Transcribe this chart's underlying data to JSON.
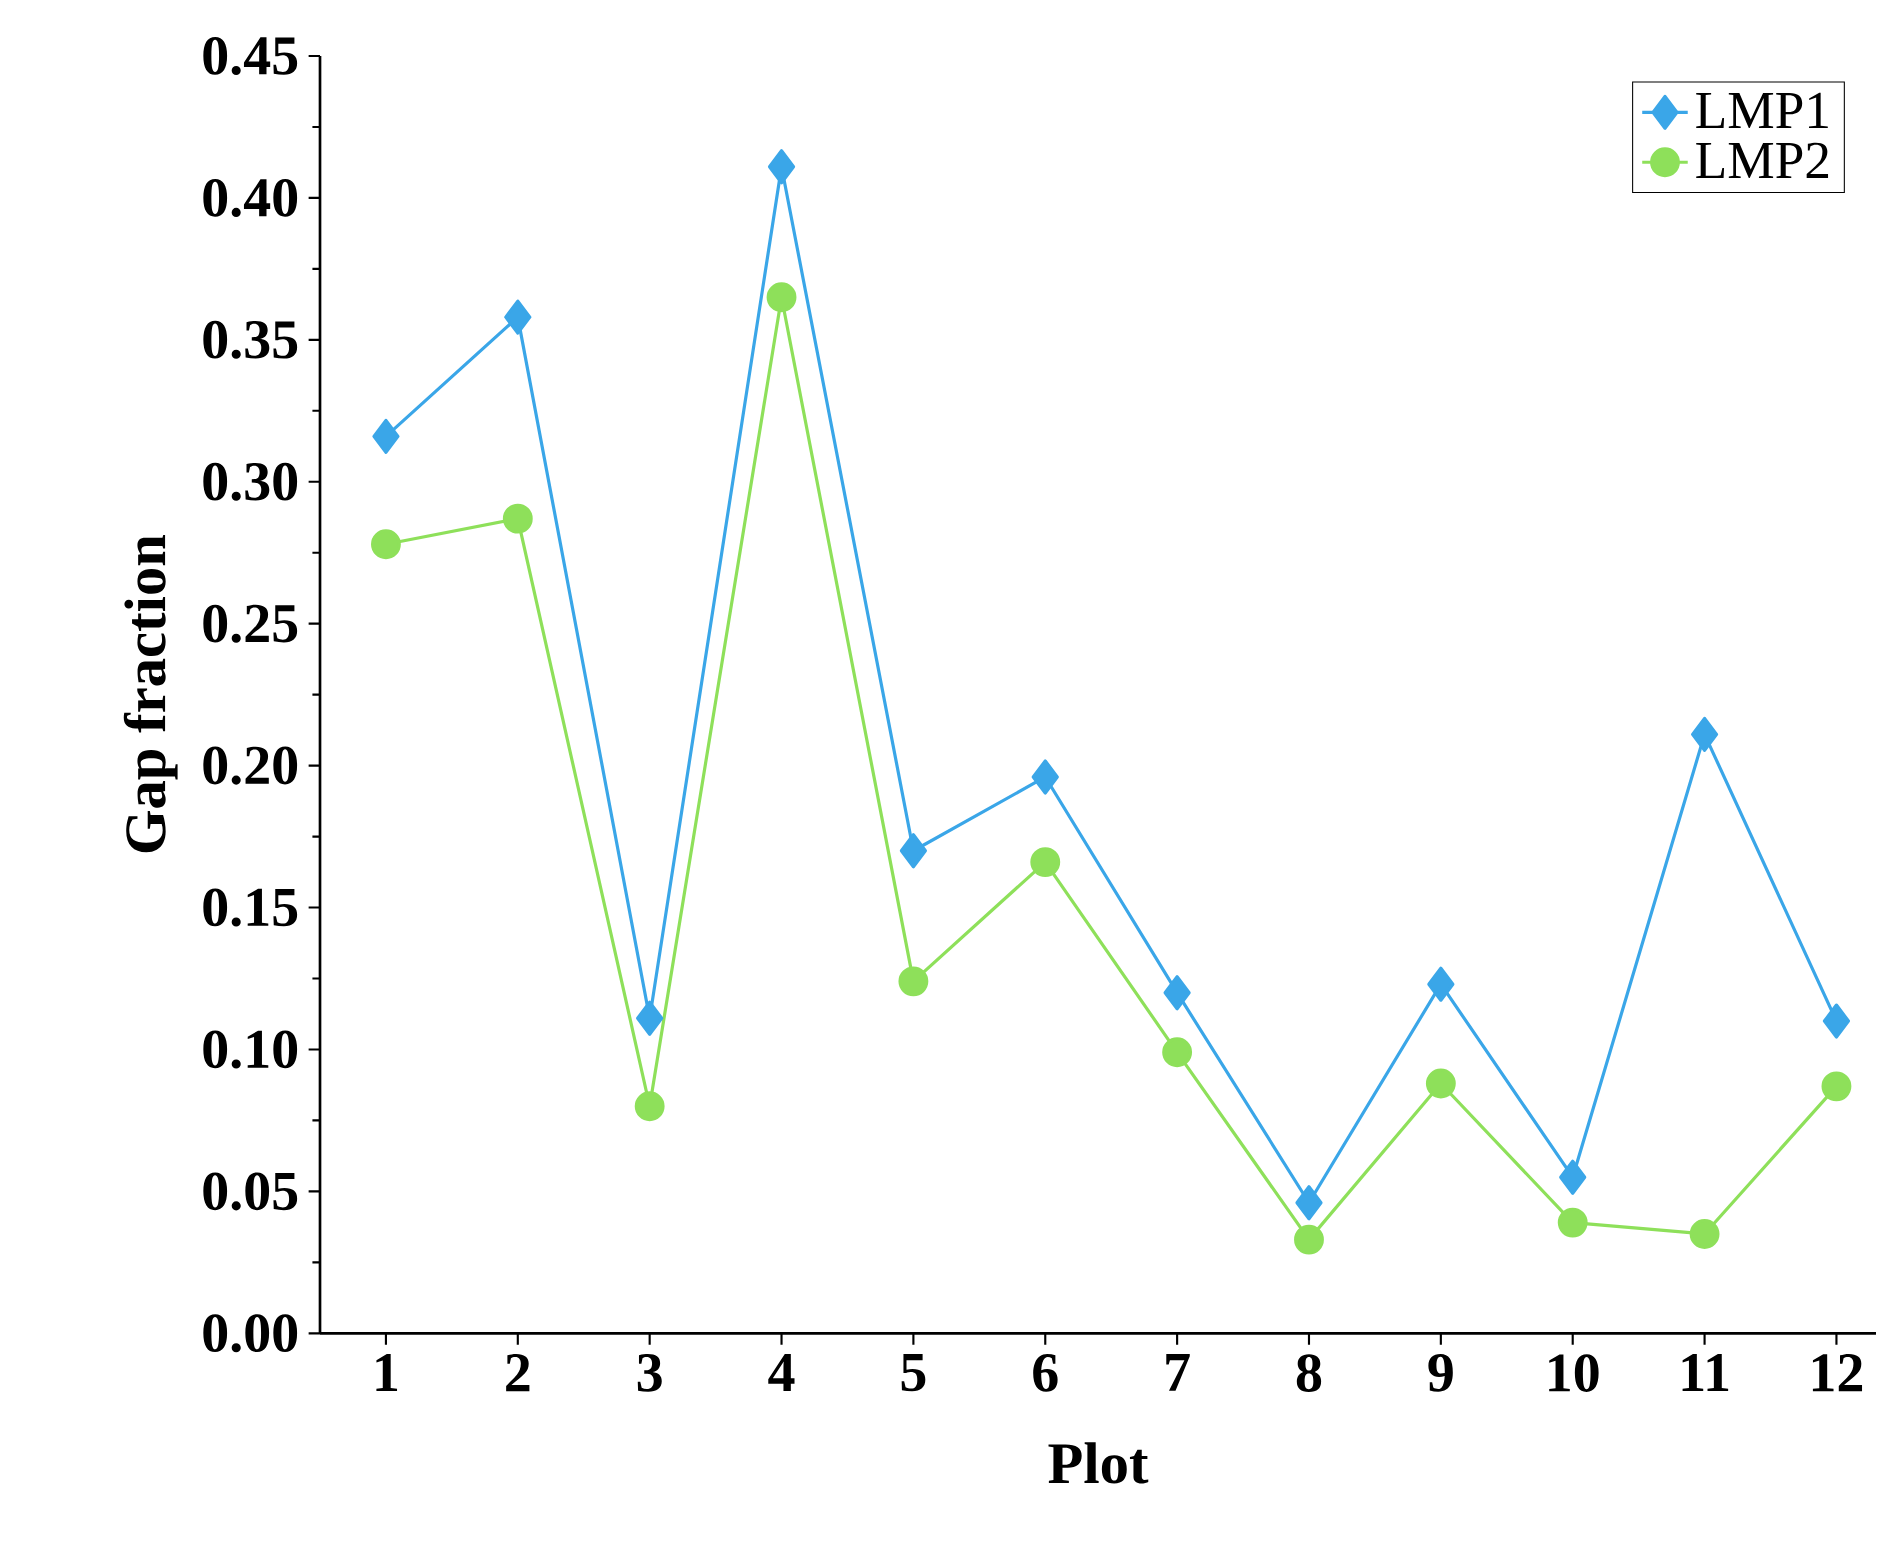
{
  "chart_data": {
    "type": "line",
    "xlabel": "Plot",
    "ylabel": "Gap fraction",
    "categories": [
      "1",
      "2",
      "3",
      "4",
      "5",
      "6",
      "7",
      "8",
      "9",
      "10",
      "11",
      "12"
    ],
    "series": [
      {
        "name": "LMP1",
        "color": "#3aa6e8",
        "marker": "diamond",
        "values": [
          0.316,
          0.358,
          0.111,
          0.411,
          0.17,
          0.196,
          0.12,
          0.046,
          0.123,
          0.055,
          0.211,
          0.11
        ]
      },
      {
        "name": "LMP2",
        "color": "#8ee05a",
        "marker": "circle",
        "values": [
          0.278,
          0.287,
          0.08,
          0.365,
          0.124,
          0.166,
          0.099,
          0.033,
          0.088,
          0.039,
          0.035,
          0.087
        ]
      }
    ],
    "ylim": [
      0,
      0.45
    ],
    "yticks": [
      {
        "value": 0,
        "label": "0.00"
      },
      {
        "value": 0.05,
        "label": "0.05"
      },
      {
        "value": 0.1,
        "label": "0.10"
      },
      {
        "value": 0.15,
        "label": "0.15"
      },
      {
        "value": 0.2,
        "label": "0.20"
      },
      {
        "value": 0.25,
        "label": "0.25"
      },
      {
        "value": 0.3,
        "label": "0.30"
      },
      {
        "value": 0.35,
        "label": "0.35"
      },
      {
        "value": 0.4,
        "label": "0.40"
      },
      {
        "value": 0.45,
        "label": "0.45"
      }
    ],
    "grid": false,
    "legend": "top right",
    "line_style": "solid"
  }
}
